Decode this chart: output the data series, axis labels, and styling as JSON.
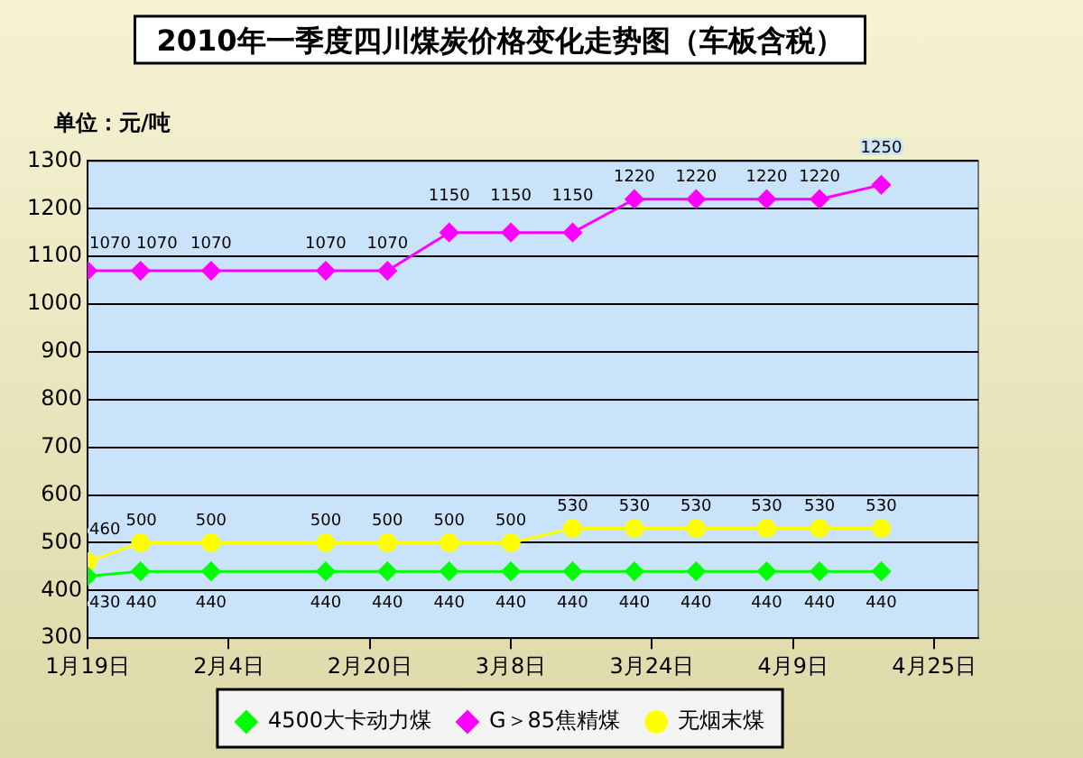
{
  "chart_data": {
    "type": "line",
    "title": "2010年一季度四川煤炭价格变化走势图（车板含税）",
    "ylabel": "单位：元/吨",
    "x": [
      "2010-01-19",
      "2010-01-25",
      "2010-02-02",
      "2010-02-15",
      "2010-02-22",
      "2010-03-01",
      "2010-03-08",
      "2010-03-15",
      "2010-03-22",
      "2010-03-29",
      "2010-04-06",
      "2010-04-12",
      "2010-04-19"
    ],
    "series": [
      {
        "name": "4500大卡动力煤",
        "color": "#00ff00",
        "marker": "diamond",
        "values": [
          430,
          440,
          440,
          440,
          440,
          440,
          440,
          440,
          440,
          440,
          440,
          440,
          440
        ]
      },
      {
        "name": "G＞85焦精煤",
        "color": "#ff00ff",
        "marker": "diamond",
        "values": [
          1070,
          1070,
          1070,
          1070,
          1070,
          1150,
          1150,
          1150,
          1220,
          1220,
          1220,
          1220,
          1250
        ]
      },
      {
        "name": "无烟末煤",
        "color": "#ffff00",
        "marker": "circle",
        "values": [
          460,
          500,
          500,
          500,
          500,
          500,
          500,
          530,
          530,
          530,
          530,
          530,
          530
        ]
      }
    ],
    "xlim": [
      "2010-01-19",
      "2010-04-30"
    ],
    "xticks": [
      {
        "value": "2010-01-19",
        "label": "1月19日"
      },
      {
        "value": "2010-02-04",
        "label": "2月4日"
      },
      {
        "value": "2010-02-20",
        "label": "2月20日"
      },
      {
        "value": "2010-03-08",
        "label": "3月8日"
      },
      {
        "value": "2010-03-24",
        "label": "3月24日"
      },
      {
        "value": "2010-04-09",
        "label": "4月9日"
      },
      {
        "value": "2010-04-25",
        "label": "4月25日"
      }
    ],
    "ylim": [
      300,
      1300
    ],
    "yticks": [
      300,
      400,
      500,
      600,
      700,
      800,
      900,
      1000,
      1100,
      1200,
      1300
    ],
    "grid": "y",
    "legend": "bottom",
    "data_labels": true,
    "line_style": "solid"
  }
}
